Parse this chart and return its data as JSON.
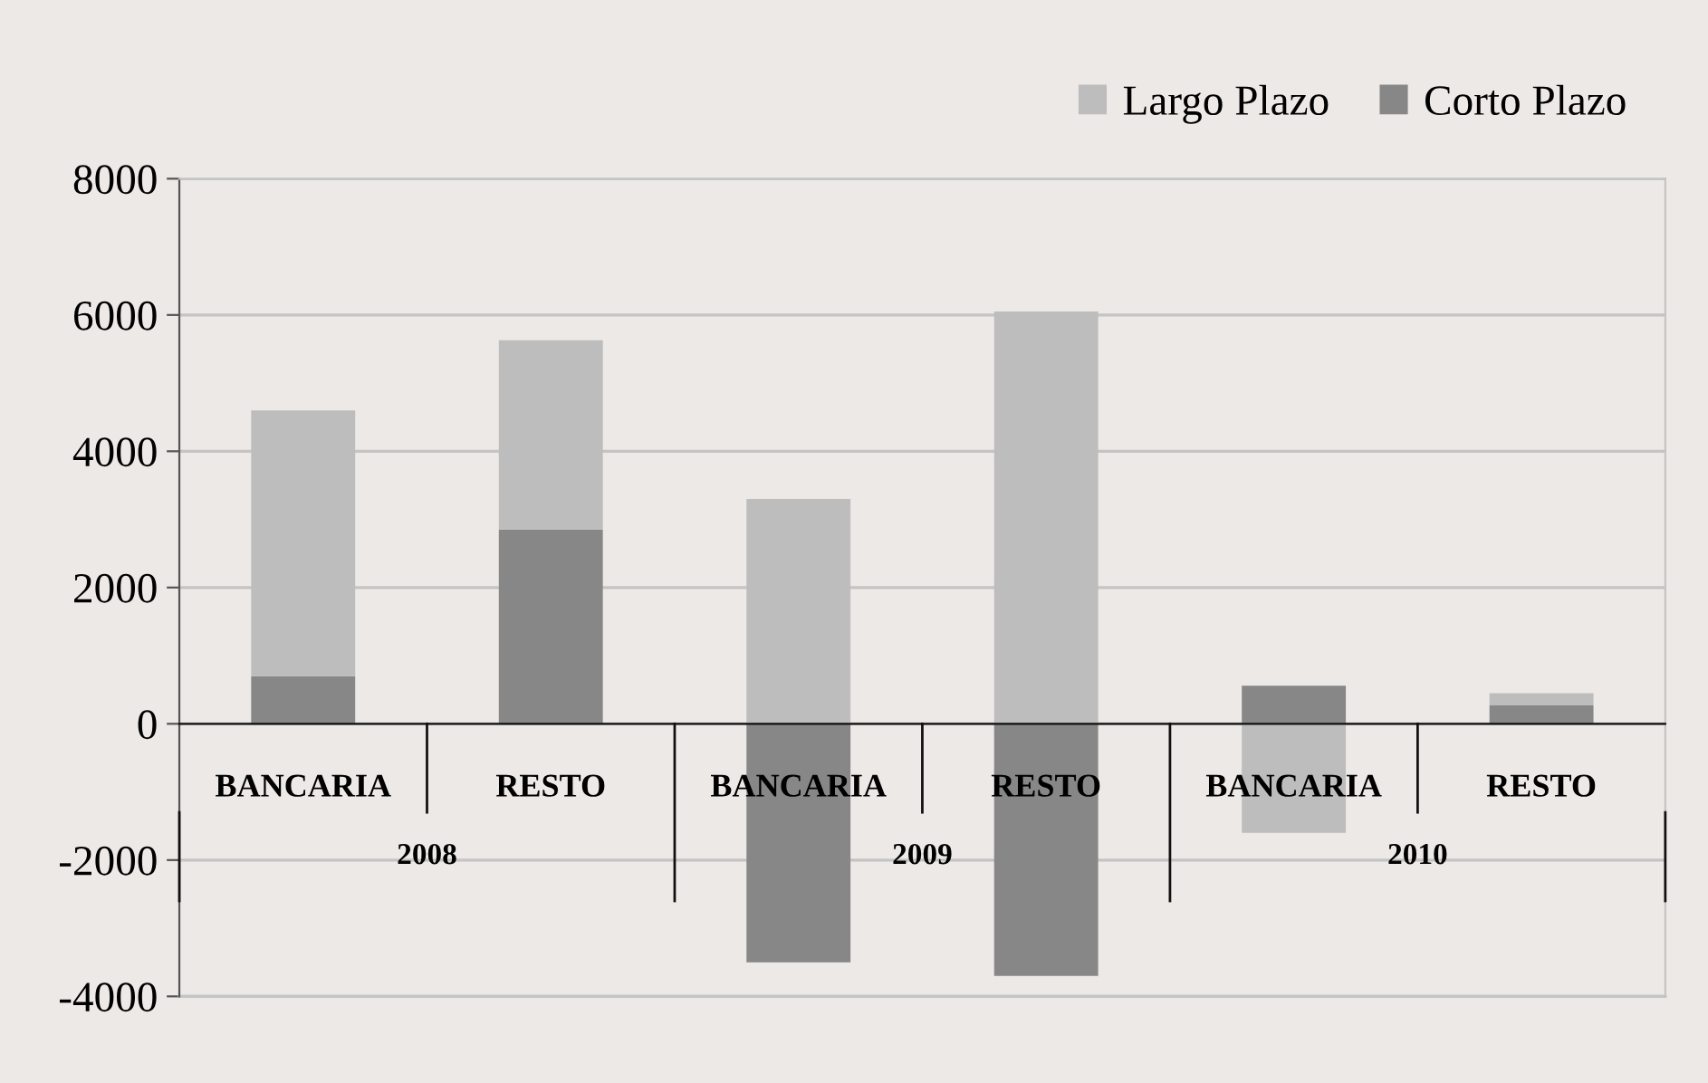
{
  "chart_data": {
    "type": "bar",
    "stacked": true,
    "categories": [
      "BANCARIA",
      "RESTO",
      "BANCARIA",
      "RESTO",
      "BANCARIA",
      "RESTO"
    ],
    "series": [
      {
        "name": "Corto Plazo",
        "color": "#878787",
        "values": [
          700,
          2850,
          -3500,
          -3700,
          560,
          270
        ]
      },
      {
        "name": "Largo Plazo",
        "color": "#bdbdbd",
        "values": [
          3900,
          2780,
          3300,
          6050,
          -1600,
          180
        ]
      }
    ],
    "annotations": [
      "2008",
      "2009",
      "2010"
    ],
    "ylim": [
      -4000,
      8000
    ],
    "yticks": [
      -4000,
      -2000,
      0,
      2000,
      4000,
      6000,
      8000
    ],
    "grid": "y",
    "legend": "top right"
  }
}
